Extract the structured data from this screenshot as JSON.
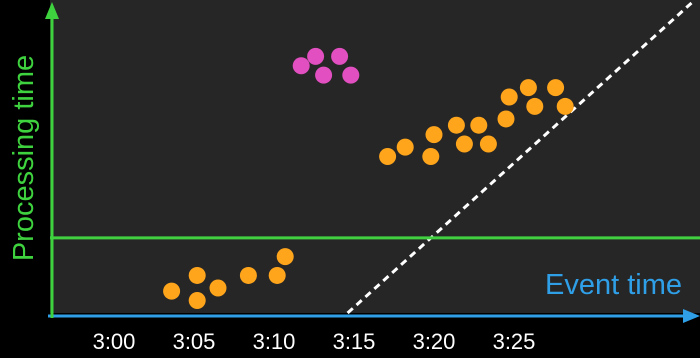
{
  "colors": {
    "background": "#000000",
    "plot_bg": "#262626",
    "processing_axis": "#3fd23f",
    "event_axis": "#2f9fe8",
    "watermark_line": "#40d040",
    "ideal_line": "#ffffff",
    "on_time_points": "#ffa51c",
    "late_points": "#e24fc0",
    "tick_text": "#ffffff"
  },
  "axes": {
    "x_title": "Event time",
    "y_title": "Processing time",
    "x_ticks": [
      "3:00",
      "3:05",
      "3:10",
      "3:15",
      "3:20",
      "3:25"
    ]
  },
  "chart_data": {
    "type": "scatter",
    "x_unit": "minutes past 3:00 (event time)",
    "xlim": [
      -4,
      36
    ],
    "ylim": [
      0,
      100
    ],
    "watermark_y": 24,
    "ideal_line": [
      [
        14.6,
        0
      ],
      [
        36.3,
        100
      ]
    ],
    "series": [
      {
        "color": "#ffa51c",
        "points": [
          [
            3.6,
            7
          ],
          [
            5.2,
            12
          ],
          [
            5.2,
            4
          ],
          [
            6.5,
            8
          ],
          [
            8.4,
            12
          ],
          [
            10.2,
            12
          ],
          [
            10.7,
            18
          ],
          [
            17.1,
            50
          ],
          [
            18.2,
            53
          ],
          [
            19.8,
            50
          ],
          [
            20.0,
            57
          ],
          [
            21.4,
            60
          ],
          [
            21.9,
            54
          ],
          [
            22.8,
            60
          ],
          [
            23.4,
            54
          ],
          [
            24.5,
            62
          ],
          [
            24.7,
            69
          ],
          [
            25.9,
            72
          ],
          [
            26.3,
            66
          ],
          [
            27.6,
            72
          ],
          [
            28.2,
            66
          ]
        ]
      },
      {
        "color": "#e24fc0",
        "points": [
          [
            11.7,
            79
          ],
          [
            12.6,
            82
          ],
          [
            13.1,
            76
          ],
          [
            14.1,
            82
          ],
          [
            14.8,
            76
          ]
        ]
      }
    ]
  }
}
